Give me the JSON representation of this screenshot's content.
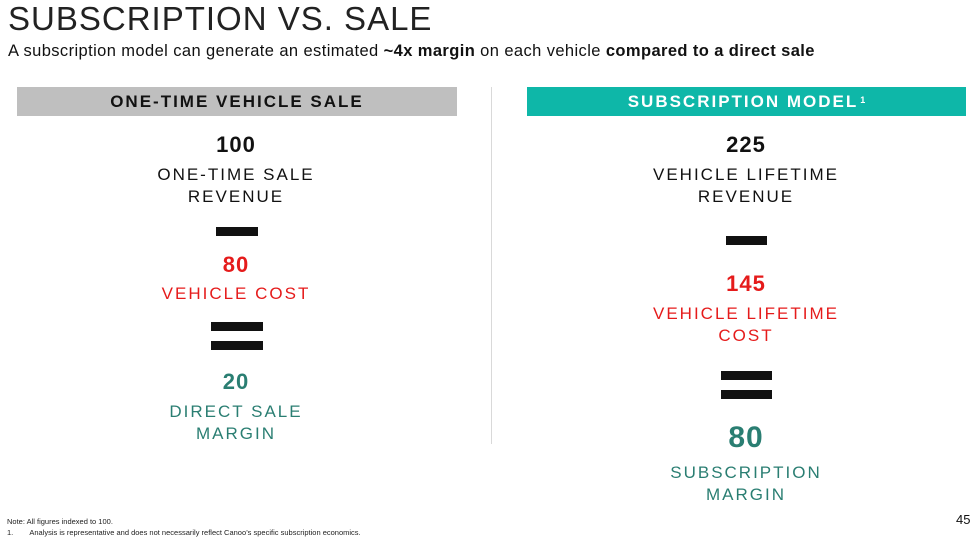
{
  "title": "SUBSCRIPTION VS. SALE",
  "subtitle": {
    "part1": "A subscription model can generate an estimated ",
    "bold1": "~4x margin",
    "part2": " on each vehicle ",
    "bold2": "compared to a direct sale"
  },
  "left": {
    "header": "ONE-TIME VEHICLE SALE",
    "revenue_value": "100",
    "revenue_label_line1": "ONE-TIME SALE",
    "revenue_label_line2": "REVENUE",
    "cost_value": "80",
    "cost_label": "VEHICLE COST",
    "margin_value": "20",
    "margin_label_line1": "DIRECT SALE",
    "margin_label_line2": "MARGIN"
  },
  "right": {
    "header": "SUBSCRIPTION MODEL",
    "header_footnote_marker": "1",
    "revenue_value": "225",
    "revenue_label_line1": "VEHICLE LIFETIME",
    "revenue_label_line2": "REVENUE",
    "cost_value": "145",
    "cost_label_line1": "VEHICLE LIFETIME",
    "cost_label_line2": "COST",
    "margin_value": "80",
    "margin_label_line1": "SUBSCRIPTION",
    "margin_label_line2": "MARGIN"
  },
  "notes": {
    "note": "Note: All figures indexed to 100.",
    "footnote_marker": "1.",
    "footnote_text": "Analysis is representative and does not necessarily reflect Canoo’s specific subscription economics."
  },
  "page_number": "45",
  "colors": {
    "left_header_bg": "#bfbfbf",
    "right_header_bg": "#0eb7a8",
    "cost_red": "#e51b1b",
    "margin_teal": "#2a7e72"
  }
}
